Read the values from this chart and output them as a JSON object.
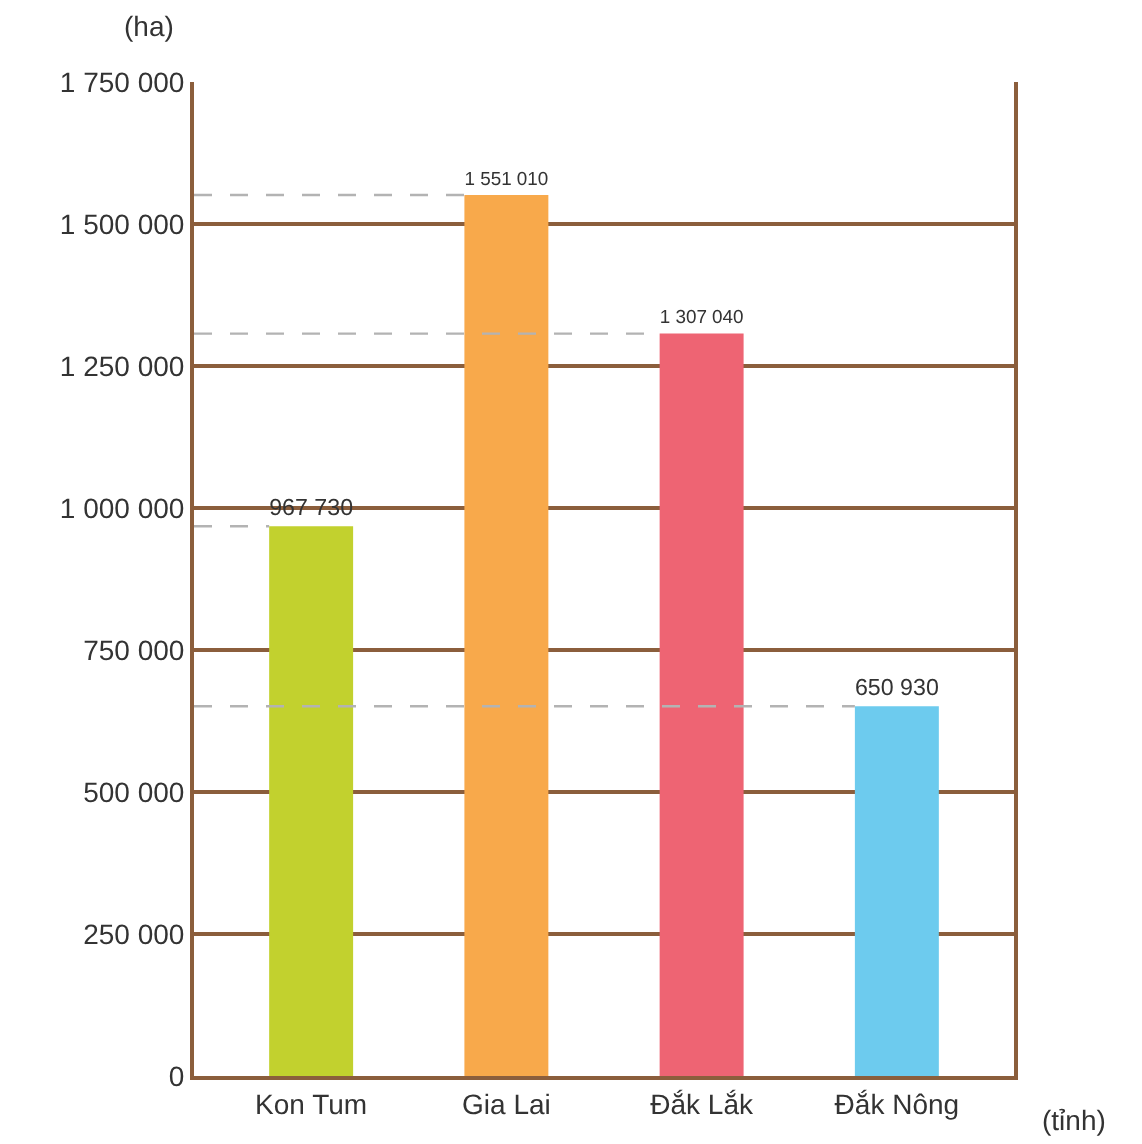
{
  "chart_data": {
    "type": "bar",
    "ylabel": "(ha)",
    "xlabel": "(tỉnh)",
    "categories": [
      "Kon Tum",
      "Gia Lai",
      "Đắk Lắk",
      "Đắk Nông"
    ],
    "values": [
      967730,
      1551010,
      1307040,
      650930
    ],
    "colors": [
      "#c2d12e",
      "#f8a94b",
      "#ee6473",
      "#6dcbee"
    ],
    "value_labels": [
      "967 730",
      "1 551 010",
      "1 307 040",
      "650 930"
    ],
    "ylim": [
      0,
      1750000
    ],
    "yticks": [
      0,
      {
        "value": 250000,
        "label": "250 000"
      },
      {
        "value": 500000,
        "label": "500 000"
      },
      {
        "value": 750000,
        "label": "750 000"
      },
      {
        "value": 1000000,
        "label": "1 000 000"
      },
      {
        "value": 1250000,
        "label": "1 250 000"
      },
      {
        "value": 1500000,
        "label": "1 500 000"
      },
      {
        "value": 1750000,
        "label": "1 750 000"
      }
    ],
    "grid": "y",
    "ref_lines": [
      {
        "axis": "y",
        "value": 967730,
        "line_style": "dashed",
        "color": "#b3b3b3"
      },
      {
        "axis": "y",
        "value": 1551010,
        "line_style": "dashed",
        "color": "#b3b3b3"
      },
      {
        "axis": "y",
        "value": 1307040,
        "line_style": "dashed",
        "color": "#b3b3b3"
      },
      {
        "axis": "y",
        "value": 650930,
        "line_style": "dashed",
        "color": "#b3b3b3"
      }
    ]
  }
}
